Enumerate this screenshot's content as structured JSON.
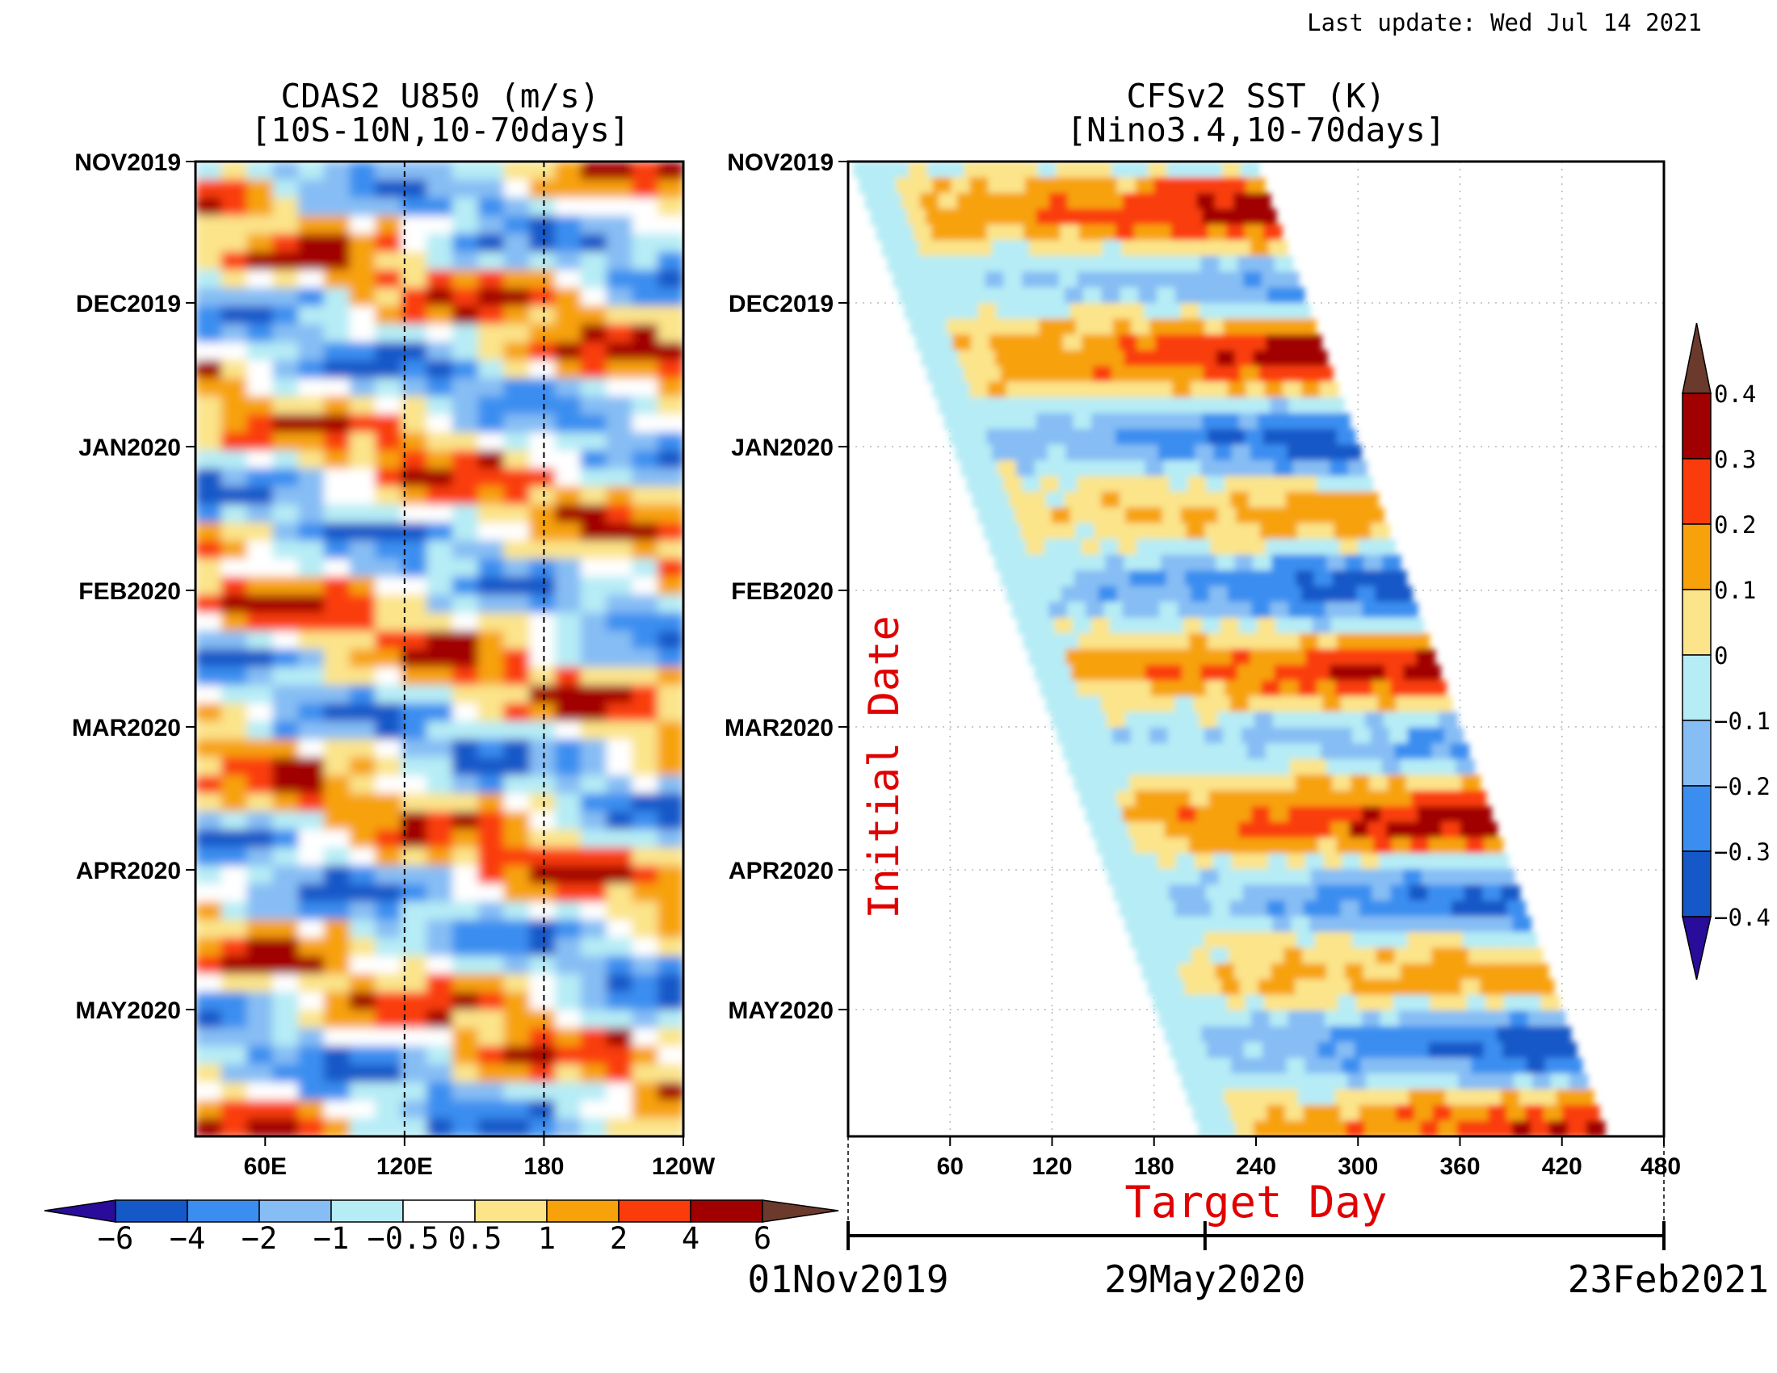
{
  "last_update": "Last update: Wed Jul 14 2021",
  "chart_data": [
    {
      "type": "heatmap",
      "title": "CDAS2 U850 (m/s)",
      "subtitle": "[10S-10N,10-70days]",
      "y_tick_labels": [
        "NOV2019",
        "DEC2019",
        "JAN2020",
        "FEB2020",
        "MAR2020",
        "APR2020",
        "MAY2020"
      ],
      "x_tick_labels": [
        "60E",
        "120E",
        "180",
        "120W"
      ],
      "x_ticks_deg": [
        60,
        120,
        180,
        240
      ],
      "xlim_deg": [
        30,
        240
      ],
      "reference_longitudes_deg": [
        120,
        180
      ],
      "colorbar": {
        "orientation": "horizontal",
        "levels": [
          -6,
          -4,
          -2,
          -1,
          -0.5,
          0.5,
          1,
          2,
          4,
          6
        ],
        "labels": [
          "−6",
          "−4",
          "−2",
          "−1",
          "−0.5",
          "0.5",
          "1",
          "2",
          "4",
          "6"
        ],
        "colors": [
          "#2a0c9a",
          "#1558c8",
          "#3b8ef0",
          "#86bdf4",
          "#b6ecf5",
          "#ffffff",
          "#fbe48a",
          "#f7a20b",
          "#fa3c0c",
          "#a10000",
          "#6b3a2c"
        ]
      }
    },
    {
      "type": "heatmap",
      "title": "CFSv2 SST (K)",
      "subtitle": "[Nino3.4,10-70days]",
      "y_tick_labels": [
        "NOV2019",
        "DEC2019",
        "JAN2020",
        "FEB2020",
        "MAR2020",
        "APR2020",
        "MAY2020"
      ],
      "x_ticks": [
        60,
        120,
        180,
        240,
        300,
        360,
        420,
        480
      ],
      "xlim": [
        0,
        480
      ],
      "xlabel": "Target Day",
      "ylabel": "Initial Date",
      "date_axis": {
        "labels": [
          "01Nov2019",
          "29May2020",
          "23Feb2021"
        ],
        "days": [
          0,
          210,
          480
        ]
      },
      "colorbar": {
        "orientation": "vertical",
        "levels": [
          -0.4,
          -0.3,
          -0.2,
          -0.1,
          0,
          0.1,
          0.2,
          0.3,
          0.4
        ],
        "labels": [
          "−0.4",
          "−0.3",
          "−0.2",
          "−0.1",
          "0",
          "0.1",
          "0.2",
          "0.3",
          "0.4"
        ],
        "colors": [
          "#2a0c9a",
          "#1558c8",
          "#3b8ef0",
          "#86bdf4",
          "#b6ecf5",
          "#fbe48a",
          "#f7a20b",
          "#fa3c0c",
          "#a10000",
          "#6b3a2c"
        ]
      }
    }
  ]
}
